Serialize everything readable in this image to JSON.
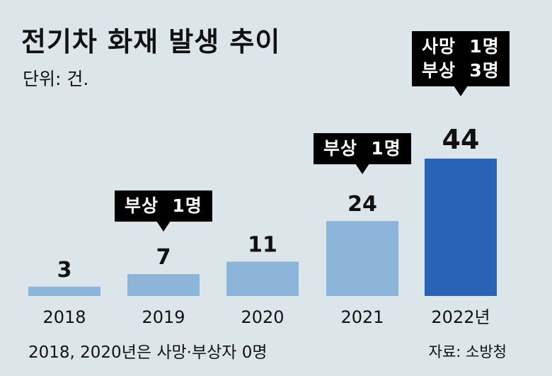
{
  "chart_data": {
    "type": "bar",
    "title": "전기차 화재 발생 추이",
    "unit_label": "단위: 건.",
    "categories": [
      "2018",
      "2019",
      "2020",
      "2021",
      "2022년"
    ],
    "values": [
      3,
      7,
      11,
      24,
      44
    ],
    "value_labels": [
      "3",
      "7",
      "11",
      "24",
      "44"
    ],
    "ylim": [
      0,
      44
    ],
    "bar_colors": [
      "#8db4d9",
      "#8db4d9",
      "#8db4d9",
      "#8db4d9",
      "#2a62b7"
    ],
    "callouts": [
      {
        "category_index": 1,
        "lines": [
          "부상  1명"
        ]
      },
      {
        "category_index": 3,
        "lines": [
          "부상  1명"
        ]
      },
      {
        "category_index": 4,
        "lines": [
          "사망  1명",
          "부상  3명"
        ]
      }
    ],
    "footnote": "2018, 2020년은 사망·부상자 0명",
    "source": "자료: 소방청"
  }
}
